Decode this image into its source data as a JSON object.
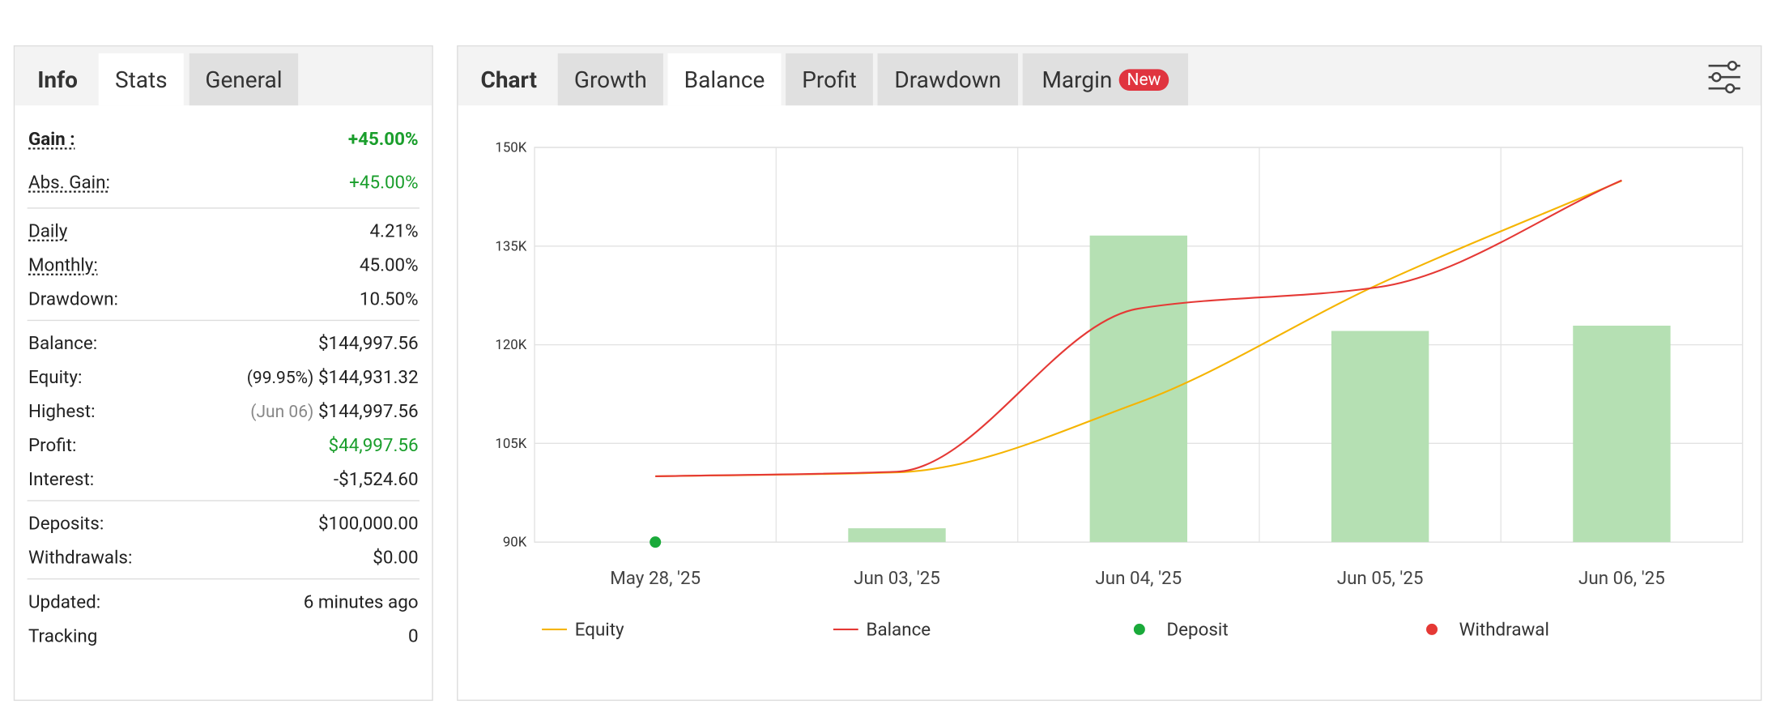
{
  "stats_panel": {
    "tabs": [
      "Info",
      "Stats",
      "General"
    ],
    "active_tab": 1,
    "groups": [
      [
        {
          "label": "Gain :",
          "value": "+45.00%",
          "color": "#1a9e2c",
          "bold": true,
          "underline": true
        },
        {
          "label": "Abs. Gain:",
          "value": "+45.00%",
          "color": "#1a9e2c",
          "underline": true
        }
      ],
      [
        {
          "label": "Daily",
          "value": "4.21%",
          "underline": true
        },
        {
          "label": "Monthly:",
          "value": "45.00%",
          "underline": true
        },
        {
          "label": "Drawdown:",
          "value": "10.50%"
        }
      ],
      [
        {
          "label": "Balance:",
          "value": "$144,997.56"
        },
        {
          "label": "Equity:",
          "note": "(99.95%)",
          "value": "$144,931.32"
        },
        {
          "label": "Highest:",
          "note": "(Jun 06)",
          "value": "$144,997.56",
          "note_color": "#888888"
        },
        {
          "label": "Profit:",
          "value": "$44,997.56",
          "color": "#1a9e2c"
        },
        {
          "label": "Interest:",
          "value": "-$1,524.60"
        }
      ],
      [
        {
          "label": "Deposits:",
          "value": "$100,000.00"
        },
        {
          "label": "Withdrawals:",
          "value": "$0.00"
        }
      ],
      [
        {
          "label": "Updated:",
          "value": "6 minutes ago"
        },
        {
          "label": "Tracking",
          "value": "0"
        }
      ]
    ]
  },
  "chart_panel": {
    "tabs": [
      "Chart",
      "Growth",
      "Balance",
      "Profit",
      "Drawdown",
      "Margin"
    ],
    "active_tab": 2,
    "badge": "New"
  },
  "chart_data": {
    "type": "line",
    "categories": [
      "May 28, '25",
      "Jun 03, '25",
      "Jun 04, '25",
      "Jun 05, '25",
      "Jun 06, '25"
    ],
    "ylim": [
      90000,
      150000
    ],
    "yticks": [
      {
        "value": 90000,
        "label": "90K"
      },
      {
        "value": 105000,
        "label": "105K"
      },
      {
        "value": 120000,
        "label": "120K"
      },
      {
        "value": 135000,
        "label": "135K"
      },
      {
        "value": 150000,
        "label": "150K"
      }
    ],
    "grid": true,
    "bars": {
      "color": "#b5e0b3",
      "values": [
        null,
        92100,
        136600,
        122100,
        122900
      ]
    },
    "series": [
      {
        "name": "Equity",
        "kind": "line",
        "color": "#f5b400",
        "values": [
          100000,
          100600,
          111200,
          129300,
          144931.32
        ]
      },
      {
        "name": "Balance",
        "kind": "line",
        "color": "#e53935",
        "values": [
          100000,
          100700,
          125500,
          128800,
          144997.56
        ]
      },
      {
        "name": "Deposit",
        "kind": "point",
        "color": "#1aaa3a",
        "values": [
          90000,
          null,
          null,
          null,
          null
        ]
      },
      {
        "name": "Withdrawal",
        "kind": "point",
        "color": "#e53935",
        "values": [
          null,
          null,
          null,
          null,
          null
        ]
      }
    ]
  }
}
